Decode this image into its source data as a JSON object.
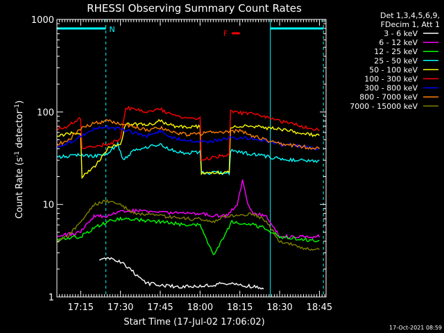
{
  "chart_data": {
    "type": "line",
    "title": "RHESSI Observing Summary Count Rates",
    "xlabel": "Start Time (17-Jul-02 17:06:02)",
    "ylabel": "Count Rate (s⁻¹ detector⁻¹)",
    "ylabel_main": "Count Rate (s",
    "ylabel_sup1": "-1",
    "ylabel_mid": " detector",
    "ylabel_sup2": "-1",
    "ylabel_end": ")",
    "y_scale": "log",
    "ylim": [
      1,
      1000
    ],
    "xlim": [
      "17:06:02",
      "18:47:30"
    ],
    "x_ticks": [
      "17:15",
      "17:30",
      "17:45",
      "18:00",
      "18:15",
      "18:30",
      "18:45"
    ],
    "y_ticks": [
      "1",
      "10",
      "100",
      "1000"
    ],
    "legend_header": [
      "Det 1,3,4,5,6,9,",
      "FDecim 1, Att 1"
    ],
    "legend_position": "right",
    "footer_date": "17-Oct-2021 08:59",
    "annotations": {
      "N_label": "N",
      "F_label": "F",
      "night_bar": [
        [
          "17:06:02",
          "17:24:30"
        ],
        [
          "18:26:30",
          "18:46:30"
        ]
      ],
      "flare_bar": [
        "18:12:00",
        "18:15:00"
      ],
      "dashed_lines": [
        "17:24:30",
        "18:46:30"
      ],
      "solid_lines": [
        "17:06:02",
        "18:26:30"
      ]
    },
    "series": [
      {
        "name": "3 - 6 keV",
        "color": "#ffffff",
        "points": [
          [
            "17:22:00",
            2.5
          ],
          [
            "17:26:00",
            2.6
          ],
          [
            "17:30:00",
            2.4
          ],
          [
            "17:40:00",
            1.4
          ],
          [
            "17:50:00",
            1.3
          ],
          [
            "18:00:00",
            1.3
          ],
          [
            "18:10:00",
            1.4
          ],
          [
            "18:20:00",
            1.3
          ],
          [
            "18:24:00",
            1.2
          ]
        ]
      },
      {
        "name": "6 - 12 keV",
        "color": "#ff00ff",
        "points": [
          [
            "17:06:02",
            4.5
          ],
          [
            "17:15:00",
            5.0
          ],
          [
            "17:20:00",
            7.5
          ],
          [
            "17:25:00",
            7.5
          ],
          [
            "17:30:00",
            8.5
          ],
          [
            "17:40:00",
            8.5
          ],
          [
            "17:50:00",
            8.0
          ],
          [
            "18:00:00",
            8.0
          ],
          [
            "18:05:00",
            7.5
          ],
          [
            "18:10:00",
            7.5
          ],
          [
            "18:14:00",
            10
          ],
          [
            "18:16:00",
            18
          ],
          [
            "18:18:00",
            10
          ],
          [
            "18:20:00",
            8.0
          ],
          [
            "18:25:00",
            7.5
          ],
          [
            "18:30:00",
            4.5
          ],
          [
            "18:45:00",
            4.5
          ]
        ]
      },
      {
        "name": "12 - 25 keV",
        "color": "#00ff00",
        "points": [
          [
            "17:06:02",
            4.2
          ],
          [
            "17:15:00",
            4.5
          ],
          [
            "17:20:00",
            5.5
          ],
          [
            "17:25:00",
            6.5
          ],
          [
            "17:30:00",
            7.0
          ],
          [
            "17:45:00",
            6.5
          ],
          [
            "17:55:00",
            6.0
          ],
          [
            "18:00:00",
            6.0
          ],
          [
            "18:05:00",
            2.8
          ],
          [
            "18:12:00",
            6.5
          ],
          [
            "18:20:00",
            6.0
          ],
          [
            "18:25:00",
            5.5
          ],
          [
            "18:30:00",
            4.5
          ],
          [
            "18:45:00",
            4.0
          ]
        ]
      },
      {
        "name": "25 - 50 keV",
        "color": "#00ffff",
        "points": [
          [
            "17:06:02",
            33
          ],
          [
            "17:10:00",
            33
          ],
          [
            "17:15:00",
            35
          ],
          [
            "17:20:00",
            33
          ],
          [
            "17:25:00",
            35
          ],
          [
            "17:27:00",
            40
          ],
          [
            "17:29:00",
            45
          ],
          [
            "17:31:00",
            30
          ],
          [
            "17:35:00",
            38
          ],
          [
            "17:40:00",
            42
          ],
          [
            "17:45:00",
            44
          ],
          [
            "17:50:00",
            38
          ],
          [
            "17:55:00",
            36
          ],
          [
            "18:00:00",
            37
          ],
          [
            "18:00:30",
            22
          ],
          [
            "18:11:00",
            22
          ],
          [
            "18:11:30",
            38
          ],
          [
            "18:20:00",
            35
          ],
          [
            "18:30:00",
            31
          ],
          [
            "18:45:00",
            29
          ]
        ]
      },
      {
        "name": "50 - 100 keV",
        "color": "#ffff00",
        "points": [
          [
            "17:06:02",
            55
          ],
          [
            "17:10:00",
            58
          ],
          [
            "17:15:00",
            60
          ],
          [
            "17:15:30",
            20
          ],
          [
            "17:20:00",
            25
          ],
          [
            "17:25:00",
            40
          ],
          [
            "17:30:00",
            45
          ],
          [
            "17:32:00",
            75
          ],
          [
            "17:40:00",
            72
          ],
          [
            "17:45:00",
            80
          ],
          [
            "17:50:00",
            70
          ],
          [
            "17:55:00",
            68
          ],
          [
            "18:00:00",
            70
          ],
          [
            "18:00:30",
            22
          ],
          [
            "18:11:00",
            22
          ],
          [
            "18:11:30",
            70
          ],
          [
            "18:20:00",
            70
          ],
          [
            "18:30:00",
            65
          ],
          [
            "18:45:00",
            55
          ]
        ]
      },
      {
        "name": "100 - 300 keV",
        "color": "#ff0000",
        "points": [
          [
            "17:06:02",
            65
          ],
          [
            "17:10:00",
            70
          ],
          [
            "17:15:00",
            85
          ],
          [
            "17:15:30",
            40
          ],
          [
            "17:20:00",
            42
          ],
          [
            "17:25:00",
            45
          ],
          [
            "17:30:00",
            50
          ],
          [
            "17:32:00",
            112
          ],
          [
            "17:40:00",
            100
          ],
          [
            "17:45:00",
            108
          ],
          [
            "17:50:00",
            90
          ],
          [
            "17:55:00",
            88
          ],
          [
            "18:00:00",
            85
          ],
          [
            "18:00:30",
            30
          ],
          [
            "18:11:00",
            35
          ],
          [
            "18:11:30",
            100
          ],
          [
            "18:20:00",
            95
          ],
          [
            "18:30:00",
            80
          ],
          [
            "18:45:00",
            63
          ]
        ]
      },
      {
        "name": "300 - 800 keV",
        "color": "#0000ff",
        "points": [
          [
            "17:06:02",
            42
          ],
          [
            "17:10:00",
            45
          ],
          [
            "17:15:00",
            55
          ],
          [
            "17:20:00",
            65
          ],
          [
            "17:25:00",
            68
          ],
          [
            "17:30:00",
            65
          ],
          [
            "17:40:00",
            55
          ],
          [
            "17:45:00",
            62
          ],
          [
            "17:50:00",
            52
          ],
          [
            "17:55:00",
            50
          ],
          [
            "18:00:00",
            48
          ],
          [
            "18:05:00",
            48
          ],
          [
            "18:10:00",
            52
          ],
          [
            "18:20:00",
            52
          ],
          [
            "18:25:00",
            48
          ],
          [
            "18:30:00",
            45
          ],
          [
            "18:45:00",
            40
          ]
        ]
      },
      {
        "name": "800 - 7000 keV",
        "color": "#ff8000",
        "points": [
          [
            "17:06:02",
            45
          ],
          [
            "17:10:00",
            48
          ],
          [
            "17:15:00",
            65
          ],
          [
            "17:20:00",
            75
          ],
          [
            "17:25:00",
            80
          ],
          [
            "17:30:00",
            75
          ],
          [
            "17:40:00",
            63
          ],
          [
            "17:45:00",
            68
          ],
          [
            "17:50:00",
            60
          ],
          [
            "17:55:00",
            57
          ],
          [
            "18:00:00",
            58
          ],
          [
            "18:05:00",
            60
          ],
          [
            "18:15:00",
            62
          ],
          [
            "18:20:00",
            55
          ],
          [
            "18:30:00",
            45
          ],
          [
            "18:45:00",
            40
          ]
        ]
      },
      {
        "name": "7000 - 15000 keV",
        "color": "#808000",
        "points": [
          [
            "17:06:02",
            4.0
          ],
          [
            "17:10:00",
            4.5
          ],
          [
            "17:15:00",
            6.5
          ],
          [
            "17:20:00",
            10
          ],
          [
            "17:25:00",
            11
          ],
          [
            "17:30:00",
            10
          ],
          [
            "17:35:00",
            8.0
          ],
          [
            "17:45:00",
            7.5
          ],
          [
            "17:55:00",
            7.0
          ],
          [
            "18:00:00",
            7.0
          ],
          [
            "18:05:00",
            6.5
          ],
          [
            "18:10:00",
            7.5
          ],
          [
            "18:20:00",
            8.0
          ],
          [
            "18:25:00",
            6.5
          ],
          [
            "18:30:00",
            4.0
          ],
          [
            "18:40:00",
            3.3
          ],
          [
            "18:45:00",
            3.3
          ]
        ]
      }
    ]
  }
}
